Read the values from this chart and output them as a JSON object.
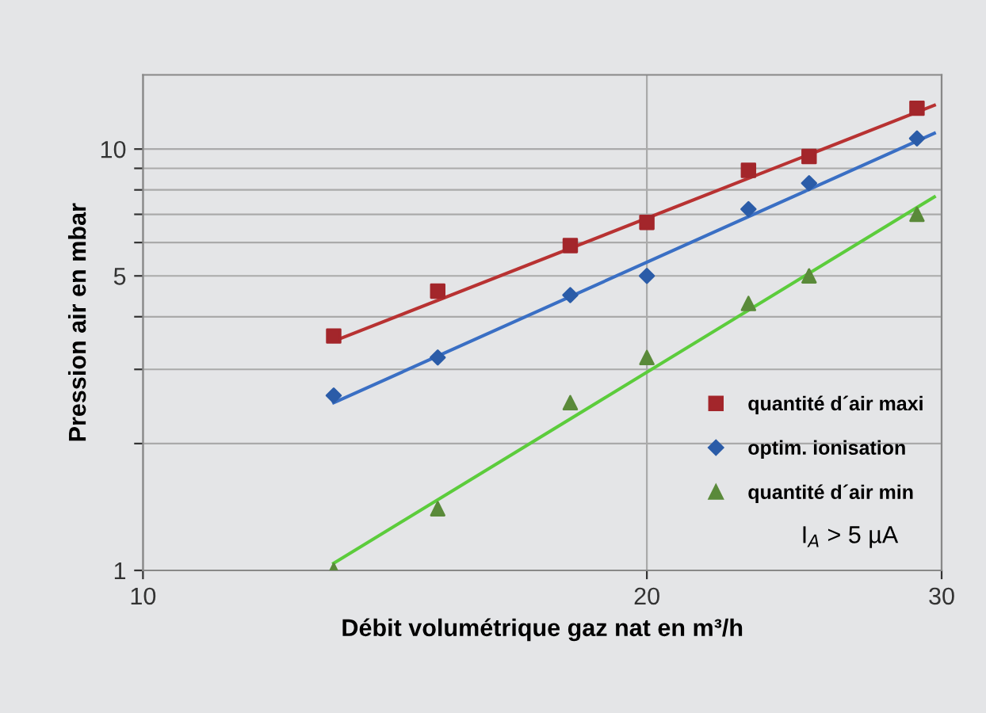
{
  "chart_data": {
    "type": "scatter",
    "xlabel": "Débit volumétrique gaz nat en m³/h",
    "ylabel": "Pression air en mbar",
    "log": "xy",
    "grid": true,
    "legend": "bottom right",
    "xlim": [
      10,
      30
    ],
    "xticks": [
      10,
      20,
      30
    ],
    "ylim": [
      1,
      15
    ],
    "yticks": [
      1,
      {
        "value": 2,
        "label": null
      },
      {
        "value": 3,
        "label": null
      },
      {
        "value": 4,
        "label": null
      },
      5,
      {
        "value": 6,
        "label": null
      },
      {
        "value": 7,
        "label": null
      },
      {
        "value": 8,
        "label": null
      },
      {
        "value": 9,
        "label": null
      },
      10
    ],
    "annotations": [
      "I$_{A}$ > 5 µA"
    ],
    "series": [
      {
        "name": "quantité d´air maxi",
        "color": "#a3262b",
        "marker": "square",
        "x": [
          13,
          15,
          18,
          20,
          23,
          25,
          29
        ],
        "values": [
          3.6,
          4.6,
          5.9,
          6.7,
          8.9,
          9.6,
          12.5
        ]
      },
      {
        "name": "optim. ionisation",
        "color": "#2b5ca8",
        "marker": "diamond",
        "x": [
          13,
          15,
          18,
          20,
          23,
          25,
          29
        ],
        "values": [
          2.6,
          3.2,
          4.5,
          5.0,
          7.2,
          8.3,
          10.6
        ]
      },
      {
        "name": "quantité d´air min",
        "color": "#5a8a3a",
        "marker": "triangle",
        "x": [
          13,
          15,
          18,
          20,
          23,
          25,
          29
        ],
        "values": [
          1.0,
          1.4,
          2.5,
          3.2,
          4.3,
          5.0,
          7.0
        ]
      },
      {
        "type": "line",
        "color": "#b83232",
        "marker": "none",
        "x": [
          13,
          29.7
        ],
        "values": [
          3.5,
          12.7
        ]
      },
      {
        "type": "line",
        "color": "#3a6fc4",
        "marker": "none",
        "x": [
          13,
          29.7
        ],
        "values": [
          2.5,
          10.9
        ]
      },
      {
        "type": "line",
        "color": "#5ccc3c",
        "marker": "none",
        "x": [
          13,
          29.7
        ],
        "values": [
          1.04,
          7.7
        ]
      }
    ]
  }
}
